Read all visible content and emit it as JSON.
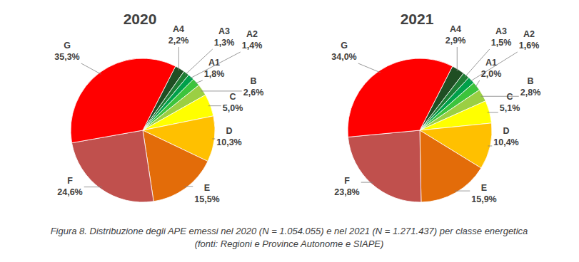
{
  "chart_data": [
    {
      "type": "pie",
      "title": "2020",
      "categories": [
        "A4",
        "A3",
        "A2",
        "A1",
        "B",
        "C",
        "D",
        "E",
        "F",
        "G"
      ],
      "values": [
        2.2,
        1.3,
        1.4,
        1.8,
        2.6,
        5.0,
        10.3,
        15.5,
        24.6,
        35.3
      ],
      "value_labels": [
        "2,2%",
        "1,3%",
        "1,4%",
        "1,8%",
        "2,6%",
        "5,0%",
        "10,3%",
        "15,5%",
        "24,6%",
        "35,3%"
      ],
      "colors": [
        "#1f4e23",
        "#1e7d34",
        "#00a04a",
        "#3cc43c",
        "#9bcf43",
        "#ffff00",
        "#ffc000",
        "#e36c09",
        "#c0504d",
        "#ff0000"
      ],
      "data_labels": true
    },
    {
      "type": "pie",
      "title": "2021",
      "categories": [
        "A4",
        "A3",
        "A2",
        "A1",
        "B",
        "C",
        "D",
        "E",
        "F",
        "G"
      ],
      "values": [
        2.9,
        1.5,
        1.6,
        2.0,
        2.8,
        5.1,
        10.4,
        15.9,
        23.8,
        34.0
      ],
      "value_labels": [
        "2,9%",
        "1,5%",
        "1,6%",
        "2,0%",
        "2,8%",
        "5,1%",
        "10,4%",
        "15,9%",
        "23,8%",
        "34,0%"
      ],
      "colors": [
        "#1f4e23",
        "#1e7d34",
        "#00a04a",
        "#3cc43c",
        "#9bcf43",
        "#ffff00",
        "#ffc000",
        "#e36c09",
        "#c0504d",
        "#ff0000"
      ],
      "data_labels": true
    }
  ],
  "caption": [
    "Figura 8. Distribuzione degli APE emessi nel 2020 (N = 1.054.055) e nel 2021 (N = 1.271.437) per classe energetica",
    "(fonti: Regioni e Province Autonome e SIAPE)"
  ]
}
